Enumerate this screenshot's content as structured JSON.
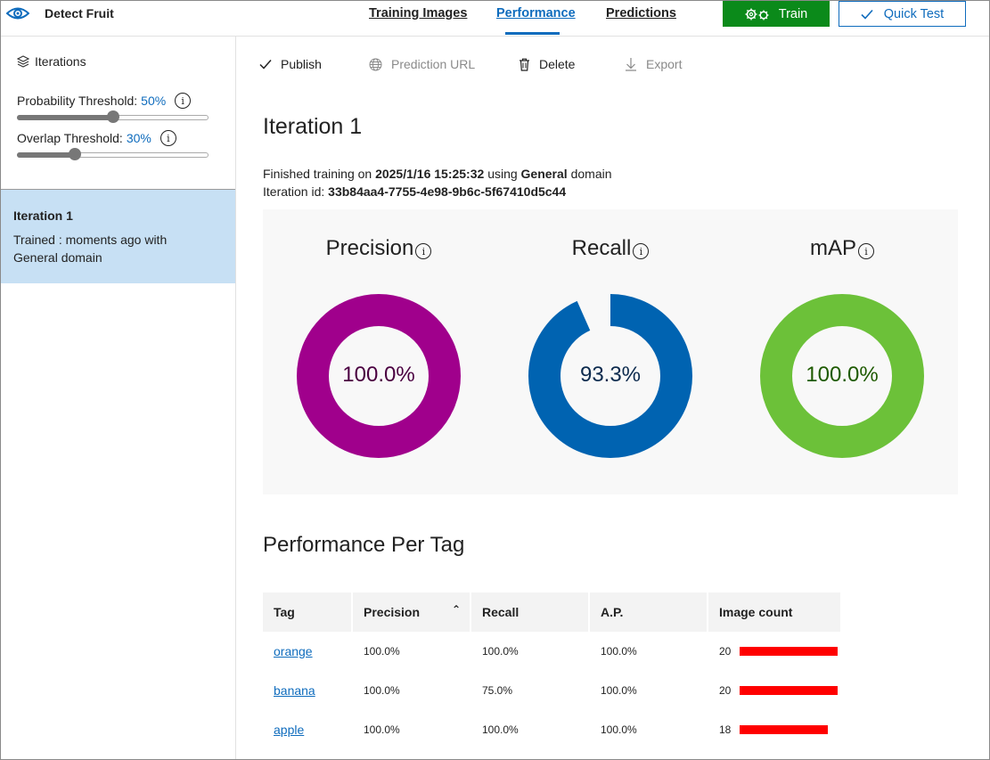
{
  "app": {
    "name": "Detect Fruit"
  },
  "nav": {
    "tabs": [
      {
        "label": "Training Images"
      },
      {
        "label": "Performance"
      },
      {
        "label": "Predictions"
      }
    ],
    "train_label": "Train",
    "quick_test_label": "Quick Test"
  },
  "sidebar": {
    "heading": "Iterations",
    "probability": {
      "label": "Probability Threshold:",
      "value": "50%",
      "level": 0.5
    },
    "overlap": {
      "label": "Overlap Threshold:",
      "value": "30%",
      "level": 0.3
    },
    "iteration": {
      "title": "Iteration 1",
      "desc": "Trained : moments ago with General domain"
    }
  },
  "toolbar": {
    "publish": "Publish",
    "prediction_url": "Prediction URL",
    "delete": "Delete",
    "export": "Export"
  },
  "main": {
    "title": "Iteration 1",
    "finished_prefix": "Finished training on",
    "finished_date": "2025/1/16 15:25:32",
    "finished_using": "using",
    "domain_name": "General",
    "domain_suffix": "domain",
    "iteration_id_label": "Iteration id:",
    "iteration_id": "33b84aa4-7755-4e98-9b6c-5f67410d5c44"
  },
  "metrics": [
    {
      "name": "Precision",
      "value": "100.0%",
      "fraction": 1.0,
      "color": "#a0008c",
      "text_color": "#4a0040"
    },
    {
      "name": "Recall",
      "value": "93.3%",
      "fraction": 0.933,
      "color": "#0063b1",
      "text_color": "#0c2a4d"
    },
    {
      "name": "mAP",
      "value": "100.0%",
      "fraction": 1.0,
      "color": "#6cc139",
      "text_color": "#1e5a00"
    }
  ],
  "per_tag": {
    "title": "Performance Per Tag",
    "headers": {
      "tag": "Tag",
      "precision": "Precision",
      "recall": "Recall",
      "ap": "A.P.",
      "count": "Image count"
    },
    "max_count": 20,
    "rows": [
      {
        "tag": "orange",
        "precision": "100.0%",
        "recall": "100.0%",
        "ap": "100.0%",
        "count": 20
      },
      {
        "tag": "banana",
        "precision": "100.0%",
        "recall": "75.0%",
        "ap": "100.0%",
        "count": 20
      },
      {
        "tag": "apple",
        "precision": "100.0%",
        "recall": "100.0%",
        "ap": "100.0%",
        "count": 18
      }
    ]
  },
  "colors": {
    "accent": "#0f6cbd",
    "train_green": "#0b8a1a",
    "bar_red": "#ff0000",
    "selected_bg": "#c7e0f4"
  }
}
